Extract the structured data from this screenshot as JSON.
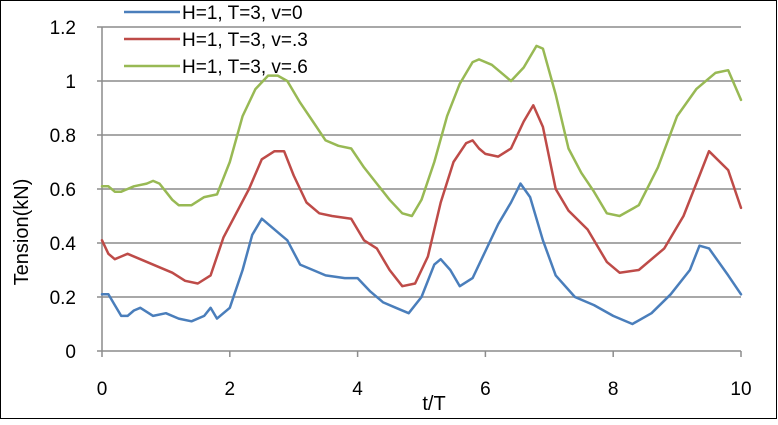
{
  "chart_data": {
    "type": "line",
    "xlabel": "t/T",
    "ylabel": "Tension(kN)",
    "xlim": [
      0,
      10
    ],
    "ylim": [
      0,
      1.2
    ],
    "xticks": [
      0,
      2,
      4,
      6,
      8,
      10
    ],
    "yticks": [
      0,
      0.2,
      0.4,
      0.6,
      0.8,
      1,
      1.2
    ],
    "xtick_labels": [
      "0",
      "2",
      "4",
      "6",
      "8",
      "10"
    ],
    "ytick_labels": [
      "0",
      "0.2",
      "0.4",
      "0.6",
      "0.8",
      "1",
      "1.2"
    ],
    "grid": "horizontal",
    "legend_position": "top-left",
    "series": [
      {
        "name": "H=1, T=3, v=0",
        "color": "#4a7ebb",
        "x": [
          0,
          0.1,
          0.2,
          0.3,
          0.4,
          0.5,
          0.6,
          0.8,
          1.0,
          1.2,
          1.4,
          1.6,
          1.7,
          1.8,
          2.0,
          2.2,
          2.35,
          2.5,
          2.6,
          2.8,
          2.9,
          3.1,
          3.3,
          3.5,
          3.8,
          4.0,
          4.2,
          4.4,
          4.6,
          4.8,
          5.0,
          5.2,
          5.3,
          5.45,
          5.6,
          5.8,
          6.0,
          6.2,
          6.4,
          6.55,
          6.7,
          6.9,
          7.1,
          7.4,
          7.7,
          8.0,
          8.3,
          8.6,
          8.9,
          9.2,
          9.35,
          9.5,
          9.8,
          10.0
        ],
        "y": [
          0.21,
          0.21,
          0.17,
          0.13,
          0.13,
          0.15,
          0.16,
          0.13,
          0.14,
          0.12,
          0.11,
          0.13,
          0.16,
          0.12,
          0.16,
          0.3,
          0.43,
          0.49,
          0.47,
          0.43,
          0.41,
          0.32,
          0.3,
          0.28,
          0.27,
          0.27,
          0.22,
          0.18,
          0.16,
          0.14,
          0.2,
          0.32,
          0.34,
          0.3,
          0.24,
          0.27,
          0.37,
          0.47,
          0.55,
          0.62,
          0.57,
          0.41,
          0.28,
          0.2,
          0.17,
          0.13,
          0.1,
          0.14,
          0.21,
          0.3,
          0.39,
          0.38,
          0.28,
          0.21
        ]
      },
      {
        "name": "H=1, T=3, v=.3",
        "color": "#be4b48",
        "x": [
          0,
          0.1,
          0.2,
          0.3,
          0.4,
          0.6,
          0.9,
          1.1,
          1.3,
          1.5,
          1.7,
          1.9,
          2.1,
          2.3,
          2.5,
          2.7,
          2.85,
          3.0,
          3.2,
          3.4,
          3.6,
          3.9,
          4.1,
          4.3,
          4.5,
          4.7,
          4.9,
          5.1,
          5.3,
          5.5,
          5.7,
          5.8,
          5.9,
          6.0,
          6.2,
          6.4,
          6.6,
          6.75,
          6.9,
          7.1,
          7.3,
          7.6,
          7.9,
          8.1,
          8.4,
          8.8,
          9.1,
          9.35,
          9.5,
          9.8,
          10.0
        ],
        "y": [
          0.41,
          0.36,
          0.34,
          0.35,
          0.36,
          0.34,
          0.31,
          0.29,
          0.26,
          0.25,
          0.28,
          0.42,
          0.51,
          0.6,
          0.71,
          0.74,
          0.74,
          0.65,
          0.55,
          0.51,
          0.5,
          0.49,
          0.41,
          0.38,
          0.3,
          0.24,
          0.25,
          0.35,
          0.55,
          0.7,
          0.77,
          0.78,
          0.75,
          0.73,
          0.72,
          0.75,
          0.85,
          0.91,
          0.83,
          0.6,
          0.52,
          0.45,
          0.33,
          0.29,
          0.3,
          0.38,
          0.5,
          0.65,
          0.74,
          0.67,
          0.53
        ]
      },
      {
        "name": "H=1, T=3, v=.6",
        "color": "#98b954",
        "x": [
          0,
          0.1,
          0.2,
          0.3,
          0.5,
          0.7,
          0.8,
          0.9,
          1.0,
          1.1,
          1.2,
          1.4,
          1.6,
          1.8,
          2.0,
          2.2,
          2.4,
          2.6,
          2.75,
          2.9,
          3.1,
          3.3,
          3.5,
          3.7,
          3.9,
          4.1,
          4.3,
          4.5,
          4.7,
          4.85,
          5.0,
          5.2,
          5.4,
          5.6,
          5.8,
          5.9,
          6.1,
          6.3,
          6.4,
          6.6,
          6.8,
          6.9,
          7.1,
          7.3,
          7.5,
          7.7,
          7.9,
          8.1,
          8.4,
          8.7,
          9.0,
          9.3,
          9.6,
          9.8,
          10.0
        ],
        "y": [
          0.61,
          0.61,
          0.59,
          0.59,
          0.61,
          0.62,
          0.63,
          0.62,
          0.59,
          0.56,
          0.54,
          0.54,
          0.57,
          0.58,
          0.7,
          0.87,
          0.97,
          1.02,
          1.02,
          1.0,
          0.92,
          0.85,
          0.78,
          0.76,
          0.75,
          0.68,
          0.62,
          0.56,
          0.51,
          0.5,
          0.56,
          0.7,
          0.87,
          0.99,
          1.07,
          1.08,
          1.06,
          1.02,
          1.0,
          1.05,
          1.13,
          1.12,
          0.95,
          0.75,
          0.66,
          0.59,
          0.51,
          0.5,
          0.54,
          0.68,
          0.87,
          0.97,
          1.03,
          1.04,
          0.93
        ]
      }
    ]
  }
}
